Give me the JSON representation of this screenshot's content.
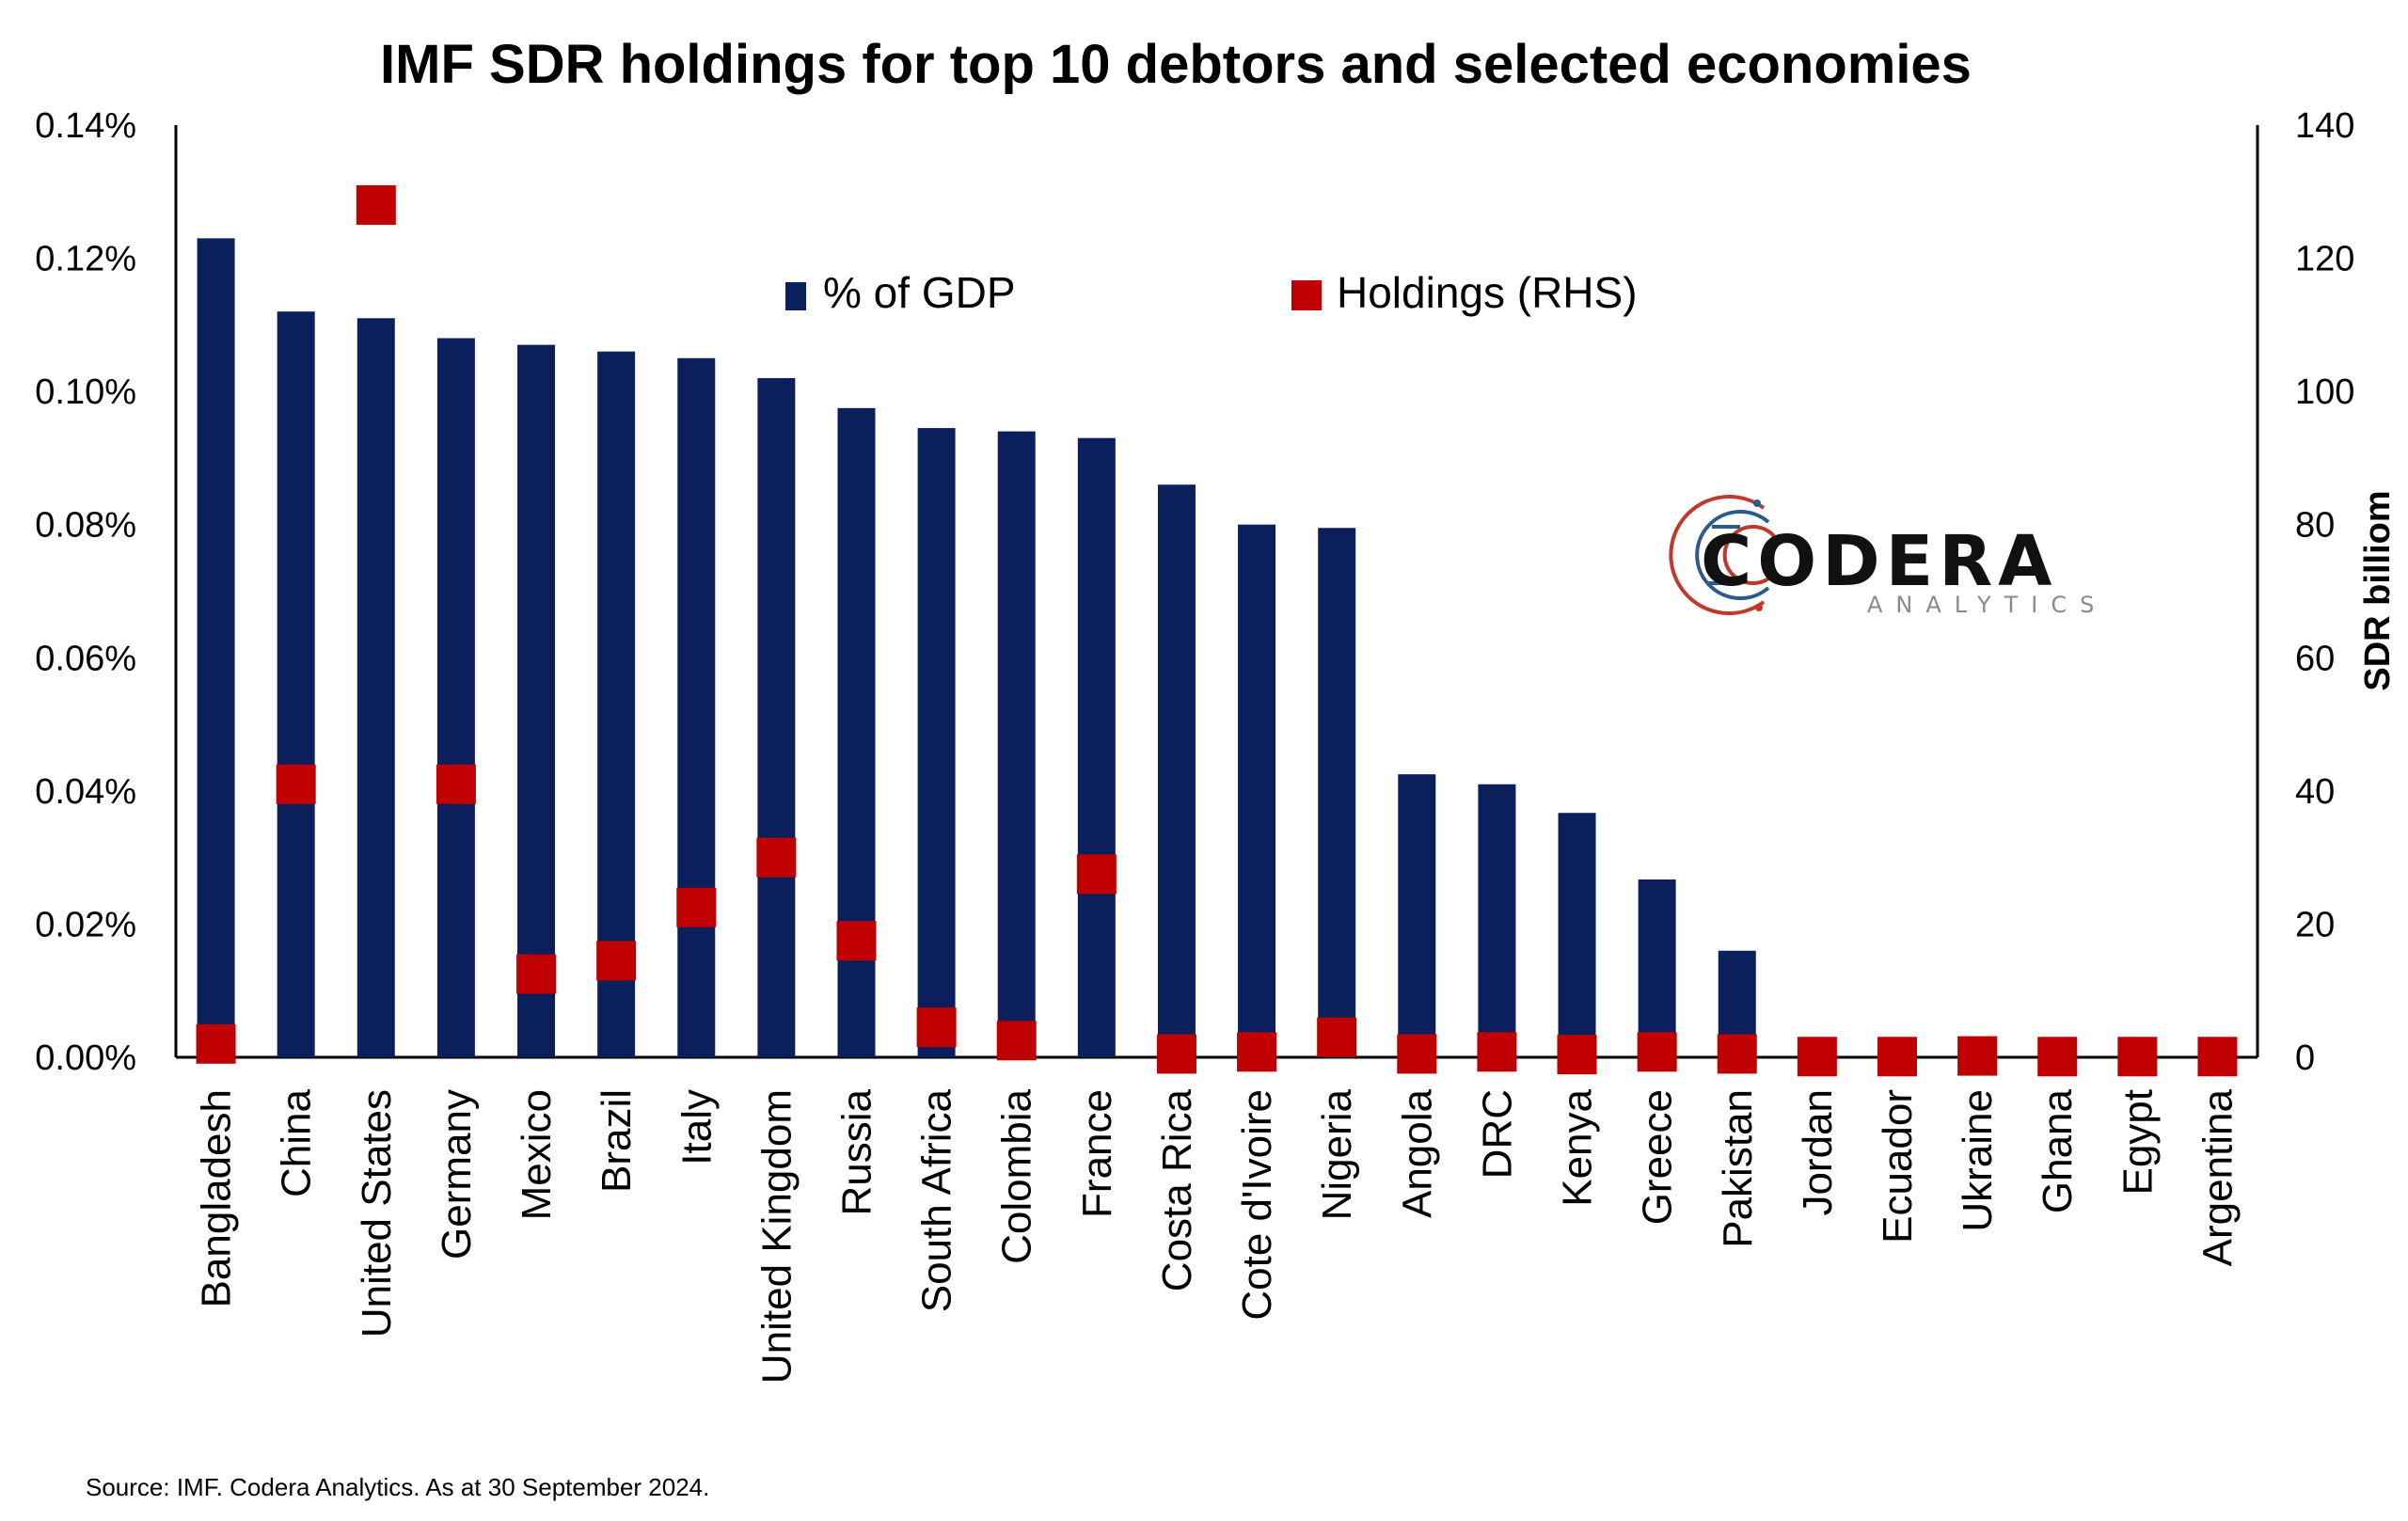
{
  "chart_data": {
    "type": "bar",
    "title": "IMF SDR holdings for top 10 debtors and selected economies",
    "ylabel_right": "SDR billiom",
    "source": "Source: IMF. Codera Analytics. As at 30 September 2024.",
    "legend_position": "top-center",
    "grid": false,
    "ylim_left": [
      0,
      0.14
    ],
    "ylim_right": [
      0,
      140
    ],
    "y_ticks_left": [
      "0.00%",
      "0.02%",
      "0.04%",
      "0.06%",
      "0.08%",
      "0.10%",
      "0.12%",
      "0.14%"
    ],
    "y_ticks_right": [
      "0",
      "20",
      "40",
      "60",
      "80",
      "100",
      "120",
      "140"
    ],
    "categories": [
      "Bangladesh",
      "China",
      "United States",
      "Germany",
      "Mexico",
      "Brazil",
      "Italy",
      "United Kingdom",
      "Russia",
      "South Africa",
      "Colombia",
      "France",
      "Costa Rica",
      "Cote d'Ivoire",
      "Nigeria",
      "Angola",
      "DRC",
      "Kenya",
      "Greece",
      "Pakistan",
      "Jordan",
      "Ecuador",
      "Ukraine",
      "Ghana",
      "Egypt",
      "Argentina"
    ],
    "series": [
      {
        "name": "% of GDP",
        "kind": "bar",
        "axis": "left",
        "color": "#0b1f5c",
        "values": [
          0.123,
          0.112,
          0.111,
          0.108,
          0.107,
          0.106,
          0.105,
          0.102,
          0.0975,
          0.0945,
          0.094,
          0.093,
          0.086,
          0.08,
          0.0795,
          0.0425,
          0.041,
          0.0367,
          0.0267,
          0.016,
          0,
          0,
          0,
          0,
          0,
          0
        ]
      },
      {
        "name": "Holdings (RHS)",
        "kind": "marker",
        "axis": "right",
        "color": "#c00000",
        "values": [
          2,
          41,
          128,
          41,
          12.5,
          14.5,
          22.5,
          30,
          17.5,
          4.5,
          2.5,
          27.5,
          0.5,
          0.8,
          3,
          0.5,
          0.8,
          0.4,
          0.8,
          0.5,
          0.1,
          0.1,
          0.2,
          0.1,
          0.1,
          0.1
        ]
      }
    ]
  },
  "logo": {
    "name": "CODERA",
    "tagline": "ANALYTICS",
    "colors": {
      "text": "#111111",
      "accent_red": "#c0392b",
      "accent_blue": "#2c5a8a",
      "tagline": "#8a8a8a"
    }
  }
}
